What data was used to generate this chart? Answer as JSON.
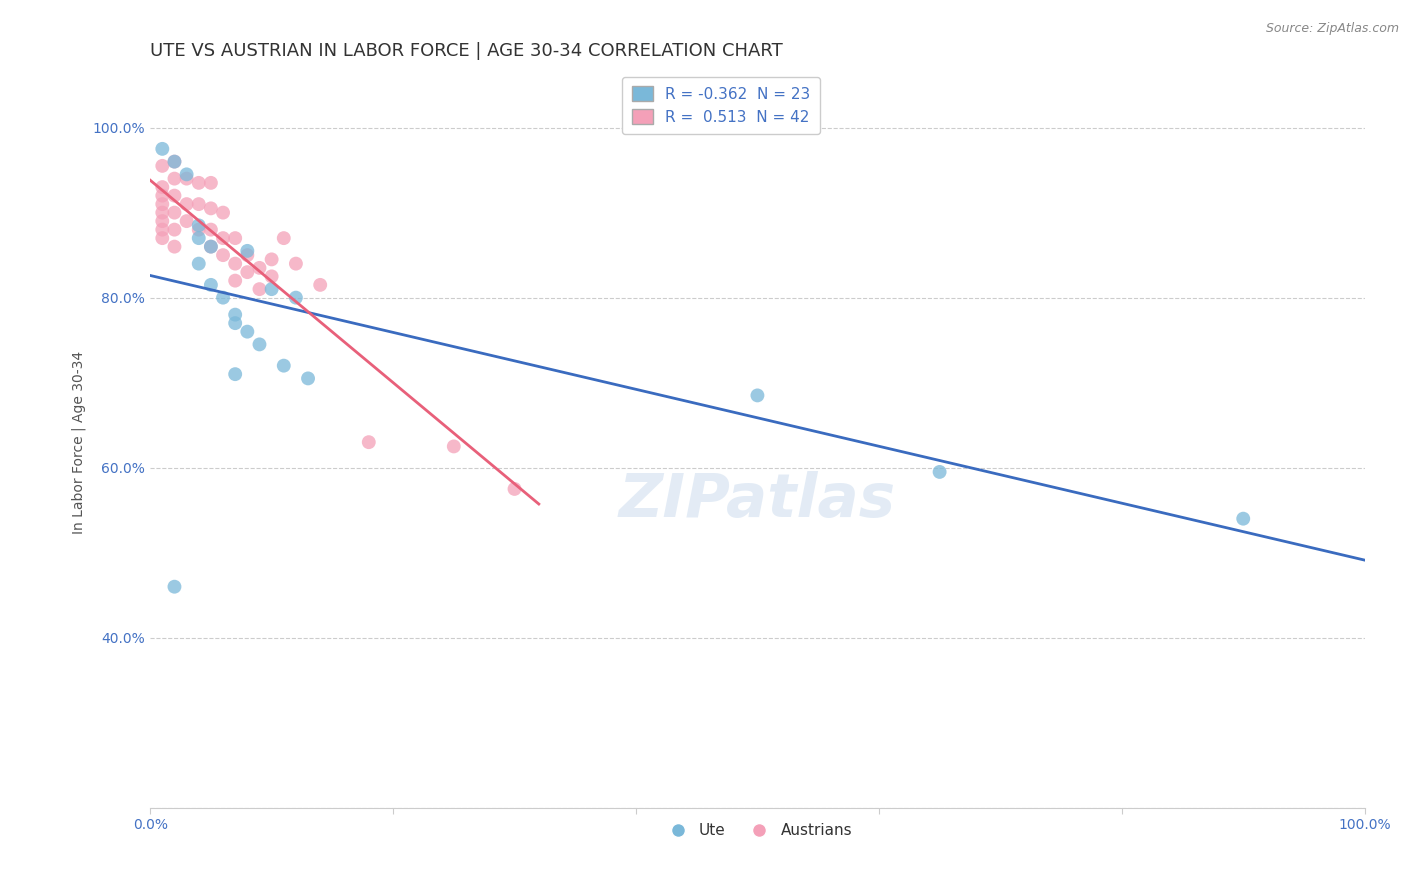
{
  "title": "UTE VS AUSTRIAN IN LABOR FORCE | AGE 30-34 CORRELATION CHART",
  "source": "Source: ZipAtlas.com",
  "ylabel": "In Labor Force | Age 30-34",
  "xlim": [
    0.0,
    1.0
  ],
  "ylim": [
    0.2,
    1.06
  ],
  "y_ticks": [
    0.4,
    0.6,
    0.8,
    1.0
  ],
  "watermark": "ZIPatlas",
  "ute_color": "#7ab8d9",
  "austrian_color": "#f4a0b8",
  "ute_line_color": "#3a6bbf",
  "austrian_line_color": "#e8607a",
  "ute_R": -0.362,
  "austrian_R": 0.513,
  "ute_N": 23,
  "austrian_N": 42,
  "ute_points": [
    [
      0.01,
      0.975
    ],
    [
      0.02,
      0.96
    ],
    [
      0.03,
      0.945
    ],
    [
      0.04,
      0.885
    ],
    [
      0.04,
      0.87
    ],
    [
      0.04,
      0.84
    ],
    [
      0.05,
      0.86
    ],
    [
      0.05,
      0.815
    ],
    [
      0.06,
      0.8
    ],
    [
      0.07,
      0.78
    ],
    [
      0.07,
      0.77
    ],
    [
      0.08,
      0.855
    ],
    [
      0.08,
      0.76
    ],
    [
      0.09,
      0.745
    ],
    [
      0.1,
      0.81
    ],
    [
      0.11,
      0.72
    ],
    [
      0.12,
      0.8
    ],
    [
      0.13,
      0.705
    ],
    [
      0.02,
      0.46
    ],
    [
      0.07,
      0.71
    ],
    [
      0.5,
      0.685
    ],
    [
      0.65,
      0.595
    ],
    [
      0.9,
      0.54
    ]
  ],
  "austrian_points": [
    [
      0.01,
      0.955
    ],
    [
      0.01,
      0.93
    ],
    [
      0.01,
      0.92
    ],
    [
      0.01,
      0.91
    ],
    [
      0.01,
      0.9
    ],
    [
      0.01,
      0.89
    ],
    [
      0.01,
      0.88
    ],
    [
      0.01,
      0.87
    ],
    [
      0.02,
      0.96
    ],
    [
      0.02,
      0.94
    ],
    [
      0.02,
      0.92
    ],
    [
      0.02,
      0.9
    ],
    [
      0.02,
      0.88
    ],
    [
      0.02,
      0.86
    ],
    [
      0.03,
      0.94
    ],
    [
      0.03,
      0.91
    ],
    [
      0.03,
      0.89
    ],
    [
      0.04,
      0.935
    ],
    [
      0.04,
      0.91
    ],
    [
      0.04,
      0.88
    ],
    [
      0.05,
      0.935
    ],
    [
      0.05,
      0.905
    ],
    [
      0.05,
      0.88
    ],
    [
      0.05,
      0.86
    ],
    [
      0.06,
      0.9
    ],
    [
      0.06,
      0.87
    ],
    [
      0.06,
      0.85
    ],
    [
      0.07,
      0.87
    ],
    [
      0.07,
      0.84
    ],
    [
      0.07,
      0.82
    ],
    [
      0.08,
      0.85
    ],
    [
      0.08,
      0.83
    ],
    [
      0.09,
      0.835
    ],
    [
      0.09,
      0.81
    ],
    [
      0.1,
      0.845
    ],
    [
      0.1,
      0.825
    ],
    [
      0.11,
      0.87
    ],
    [
      0.12,
      0.84
    ],
    [
      0.14,
      0.815
    ],
    [
      0.18,
      0.63
    ],
    [
      0.25,
      0.625
    ],
    [
      0.3,
      0.575
    ]
  ],
  "grid_color": "#cccccc",
  "background_color": "#ffffff",
  "title_fontsize": 13,
  "axis_fontsize": 10,
  "tick_fontsize": 10,
  "legend_fontsize": 11,
  "marker_size": 10
}
